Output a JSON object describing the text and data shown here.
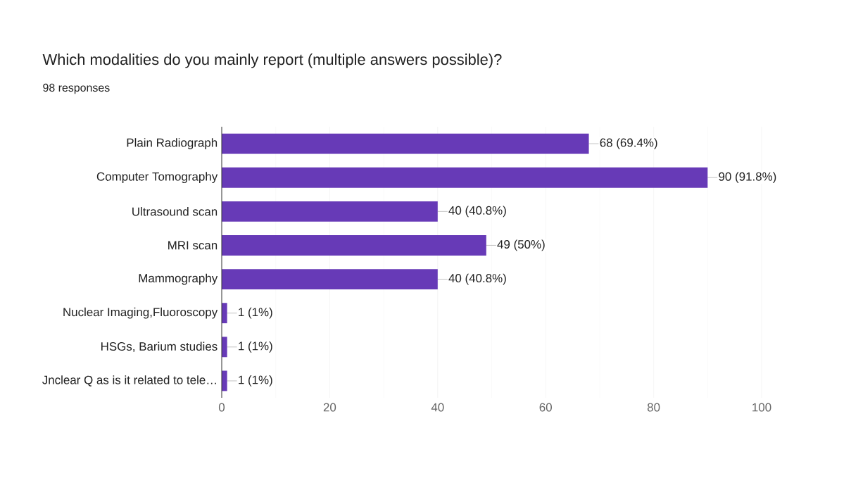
{
  "chart_data": {
    "type": "bar",
    "orientation": "horizontal",
    "title": "Which modalities do you mainly report (multiple answers possible)?",
    "subtitle": "98 responses",
    "categories": [
      "Plain Radiograph",
      "Computer Tomography",
      "Ultrasound scan",
      "MRI scan",
      "Mammography",
      "Nuclear Imaging,Fluoroscopy",
      "HSGs, Barium studies",
      "Jnclear Q as is it related to tele…"
    ],
    "values": [
      68,
      90,
      40,
      49,
      40,
      1,
      1,
      1
    ],
    "value_labels": [
      "68 (69.4%)",
      "90 (91.8%)",
      "40 (40.8%)",
      "49 (50%)",
      "40 (40.8%)",
      "1 (1%)",
      "1 (1%)",
      "1 (1%)"
    ],
    "color": "#673ab7",
    "xlim": [
      0,
      100
    ],
    "xticks": [
      0,
      20,
      40,
      60,
      80,
      100
    ],
    "grid": "x"
  }
}
